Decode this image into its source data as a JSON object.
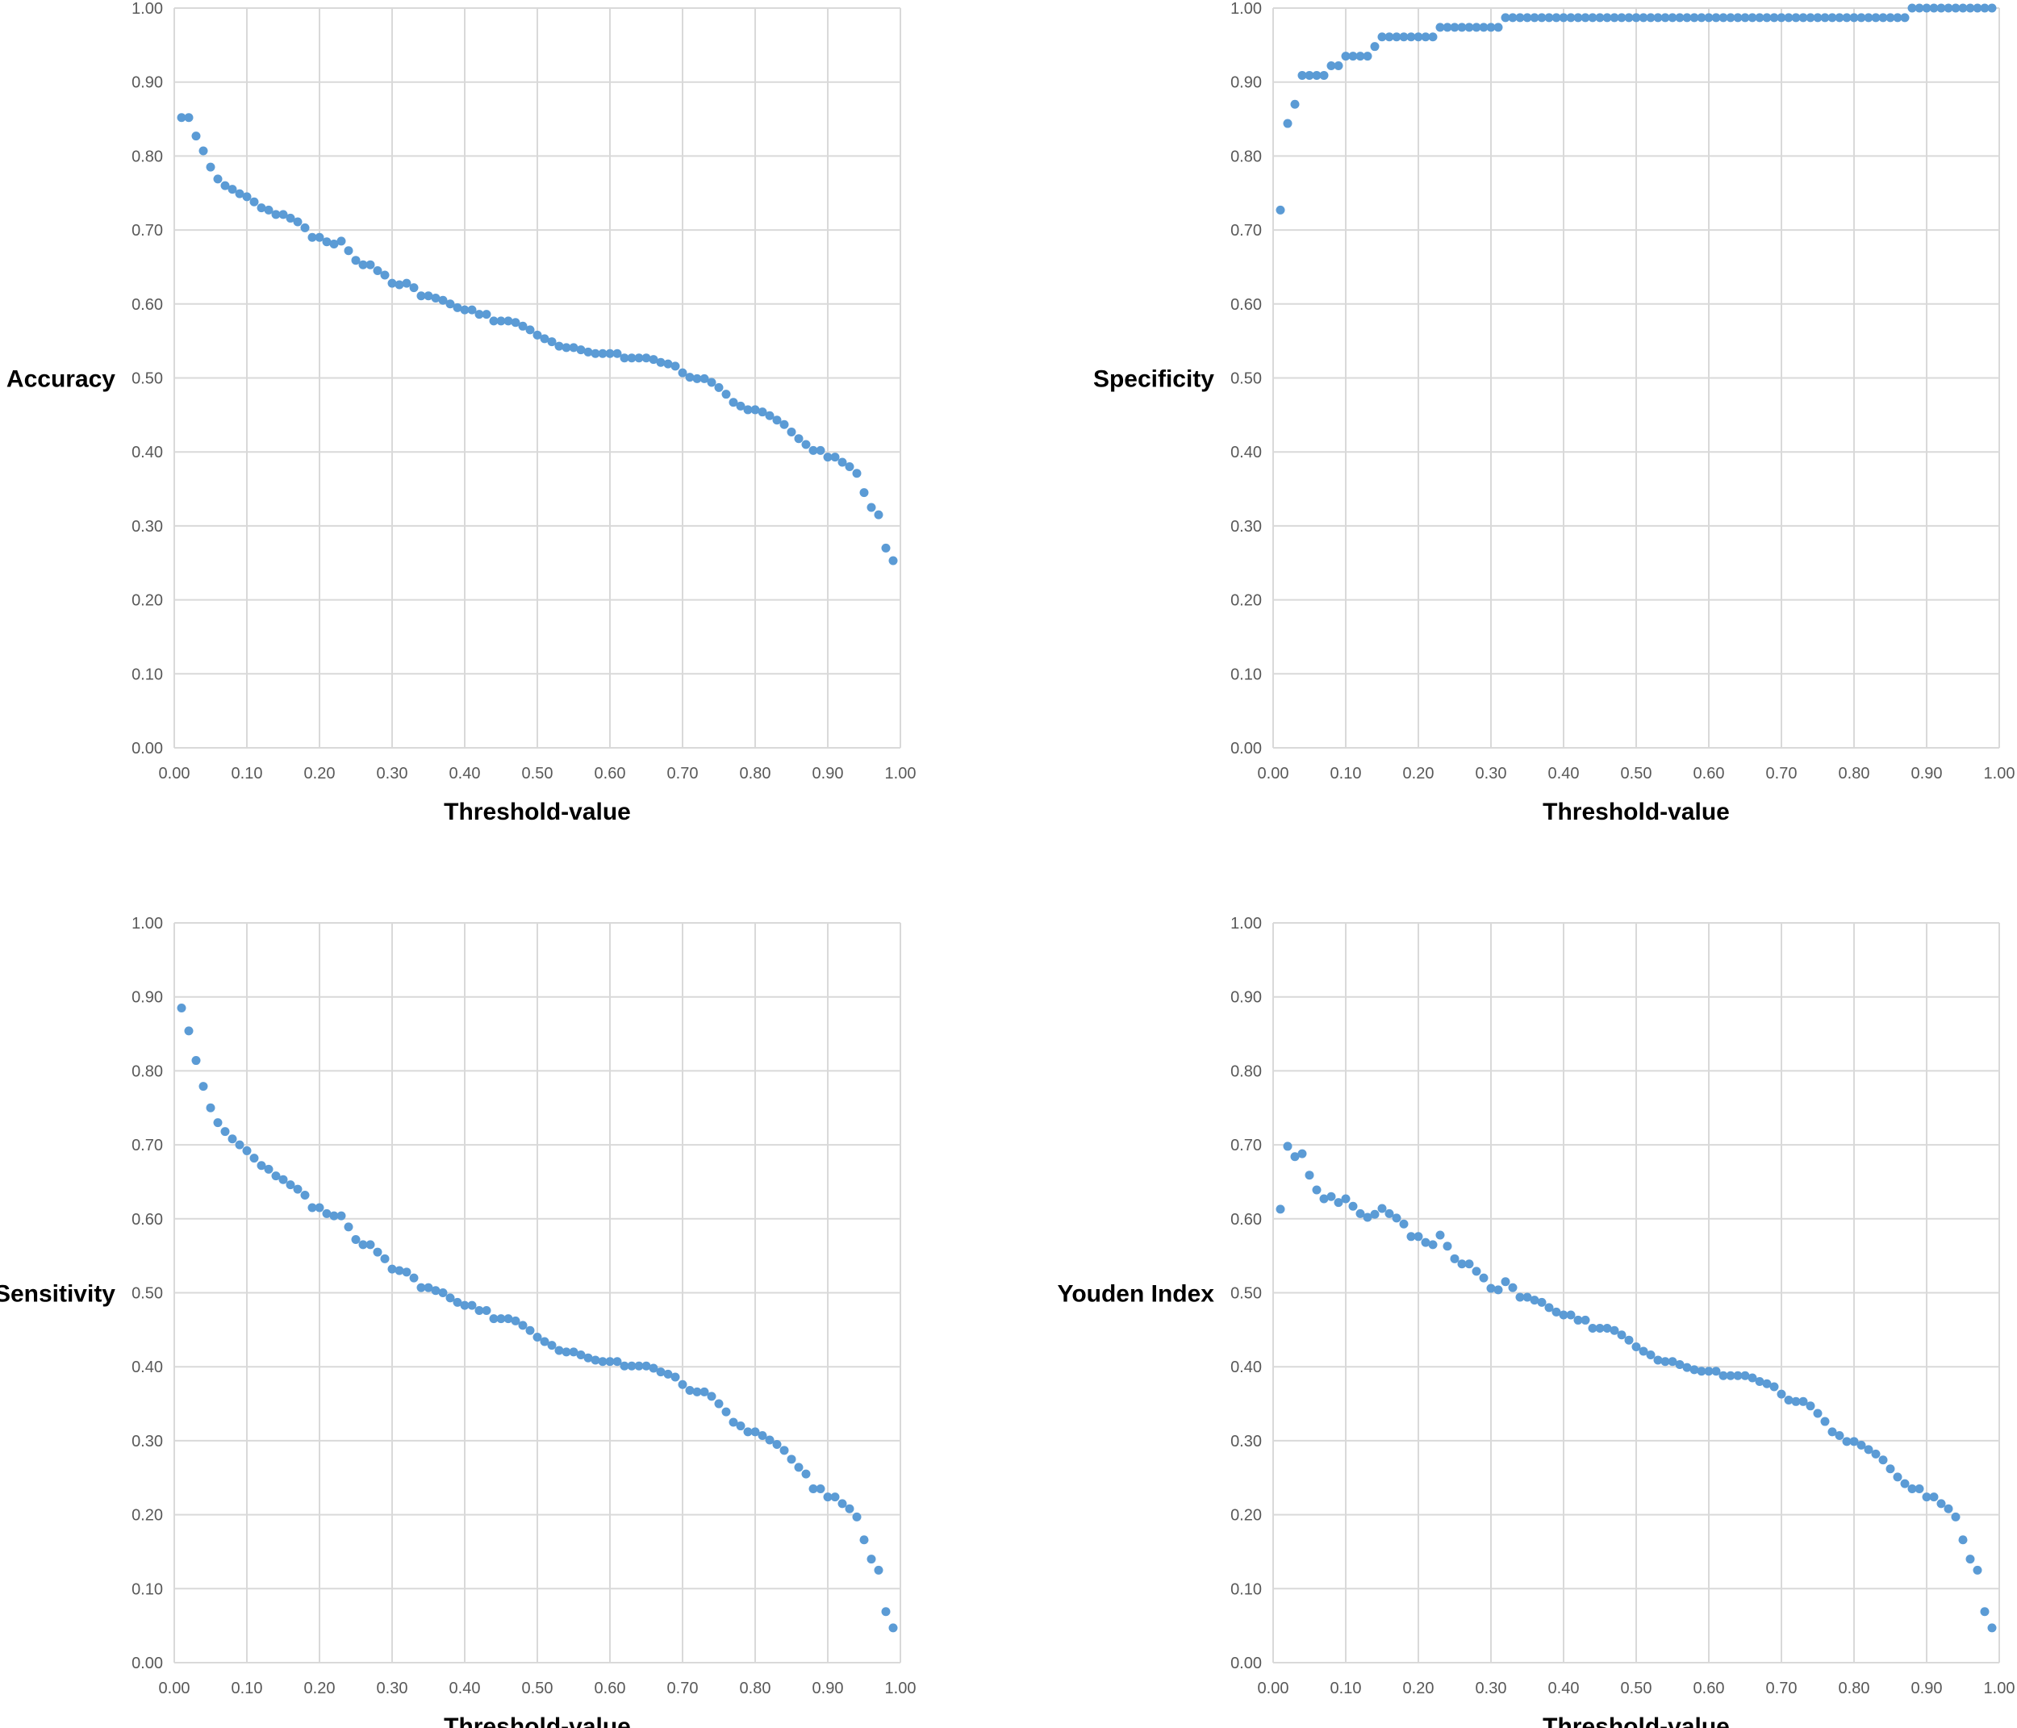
{
  "chart_data": [
    {
      "type": "scatter",
      "xlabel": "Threshold-value",
      "ylabel": "Accuracy",
      "xlim": [
        0,
        1
      ],
      "ylim": [
        0,
        1
      ],
      "grid": true,
      "legend": "none",
      "x_ticks": [
        "0.00",
        "0.10",
        "0.20",
        "0.30",
        "0.40",
        "0.50",
        "0.60",
        "0.70",
        "0.80",
        "0.90",
        "1.00"
      ],
      "y_ticks": [
        "0.00",
        "0.10",
        "0.20",
        "0.30",
        "0.40",
        "0.50",
        "0.60",
        "0.70",
        "0.80",
        "0.90",
        "1.00"
      ],
      "color": "#5b9bd5",
      "x": [
        0.01,
        0.02,
        0.03,
        0.04,
        0.05,
        0.06,
        0.07,
        0.08,
        0.09,
        0.1,
        0.11,
        0.12,
        0.13,
        0.14,
        0.15,
        0.16,
        0.17,
        0.18,
        0.19,
        0.2,
        0.21,
        0.22,
        0.23,
        0.24,
        0.25,
        0.26,
        0.27,
        0.28,
        0.29,
        0.3,
        0.31,
        0.32,
        0.33,
        0.34,
        0.35,
        0.36,
        0.37,
        0.38,
        0.39,
        0.4,
        0.41,
        0.42,
        0.43,
        0.44,
        0.45,
        0.46,
        0.47,
        0.48,
        0.49,
        0.5,
        0.51,
        0.52,
        0.53,
        0.54,
        0.55,
        0.56,
        0.57,
        0.58,
        0.59,
        0.6,
        0.61,
        0.62,
        0.63,
        0.64,
        0.65,
        0.66,
        0.67,
        0.68,
        0.69,
        0.7,
        0.71,
        0.72,
        0.73,
        0.74,
        0.75,
        0.76,
        0.77,
        0.78,
        0.79,
        0.8,
        0.81,
        0.82,
        0.83,
        0.84,
        0.85,
        0.86,
        0.87,
        0.88,
        0.89,
        0.9,
        0.91,
        0.92,
        0.93,
        0.94,
        0.95,
        0.96,
        0.97,
        0.98,
        0.99
      ],
      "y": [
        0.852,
        0.852,
        0.827,
        0.807,
        0.785,
        0.769,
        0.76,
        0.755,
        0.749,
        0.745,
        0.738,
        0.73,
        0.727,
        0.721,
        0.721,
        0.716,
        0.711,
        0.703,
        0.69,
        0.69,
        0.684,
        0.681,
        0.685,
        0.672,
        0.659,
        0.653,
        0.653,
        0.645,
        0.639,
        0.628,
        0.626,
        0.628,
        0.622,
        0.611,
        0.611,
        0.608,
        0.605,
        0.6,
        0.595,
        0.592,
        0.592,
        0.586,
        0.586,
        0.577,
        0.577,
        0.577,
        0.575,
        0.57,
        0.565,
        0.558,
        0.553,
        0.549,
        0.543,
        0.541,
        0.541,
        0.538,
        0.535,
        0.533,
        0.533,
        0.533,
        0.533,
        0.527,
        0.527,
        0.527,
        0.527,
        0.525,
        0.521,
        0.519,
        0.516,
        0.507,
        0.501,
        0.499,
        0.499,
        0.494,
        0.487,
        0.478,
        0.467,
        0.462,
        0.457,
        0.457,
        0.454,
        0.449,
        0.443,
        0.437,
        0.427,
        0.418,
        0.41,
        0.402,
        0.402,
        0.393,
        0.393,
        0.386,
        0.38,
        0.371,
        0.345,
        0.325,
        0.315,
        0.27,
        0.253
      ]
    },
    {
      "type": "scatter",
      "xlabel": "Threshold-value",
      "ylabel": "Specificity",
      "xlim": [
        0,
        1
      ],
      "ylim": [
        0,
        1
      ],
      "grid": true,
      "legend": "none",
      "x_ticks": [
        "0.00",
        "0.10",
        "0.20",
        "0.30",
        "0.40",
        "0.50",
        "0.60",
        "0.70",
        "0.80",
        "0.90",
        "1.00"
      ],
      "y_ticks": [
        "0.00",
        "0.10",
        "0.20",
        "0.30",
        "0.40",
        "0.50",
        "0.60",
        "0.70",
        "0.80",
        "0.90",
        "1.00"
      ],
      "color": "#5b9bd5",
      "x": [
        0.01,
        0.02,
        0.03,
        0.04,
        0.05,
        0.06,
        0.07,
        0.08,
        0.09,
        0.1,
        0.11,
        0.12,
        0.13,
        0.14,
        0.15,
        0.16,
        0.17,
        0.18,
        0.19,
        0.2,
        0.21,
        0.22,
        0.23,
        0.24,
        0.25,
        0.26,
        0.27,
        0.28,
        0.29,
        0.3,
        0.31,
        0.32,
        0.33,
        0.34,
        0.35,
        0.36,
        0.37,
        0.38,
        0.39,
        0.4,
        0.41,
        0.42,
        0.43,
        0.44,
        0.45,
        0.46,
        0.47,
        0.48,
        0.49,
        0.5,
        0.51,
        0.52,
        0.53,
        0.54,
        0.55,
        0.56,
        0.57,
        0.58,
        0.59,
        0.6,
        0.61,
        0.62,
        0.63,
        0.64,
        0.65,
        0.66,
        0.67,
        0.68,
        0.69,
        0.7,
        0.71,
        0.72,
        0.73,
        0.74,
        0.75,
        0.76,
        0.77,
        0.78,
        0.79,
        0.8,
        0.81,
        0.82,
        0.83,
        0.84,
        0.85,
        0.86,
        0.87,
        0.88,
        0.89,
        0.9,
        0.91,
        0.92,
        0.93,
        0.94,
        0.95,
        0.96,
        0.97,
        0.98,
        0.99
      ],
      "y": [
        0.727,
        0.844,
        0.87,
        0.909,
        0.909,
        0.909,
        0.909,
        0.922,
        0.922,
        0.935,
        0.935,
        0.935,
        0.935,
        0.948,
        0.961,
        0.961,
        0.961,
        0.961,
        0.961,
        0.961,
        0.961,
        0.961,
        0.974,
        0.974,
        0.974,
        0.974,
        0.974,
        0.974,
        0.974,
        0.974,
        0.974,
        0.987,
        0.987,
        0.987,
        0.987,
        0.987,
        0.987,
        0.987,
        0.987,
        0.987,
        0.987,
        0.987,
        0.987,
        0.987,
        0.987,
        0.987,
        0.987,
        0.987,
        0.987,
        0.987,
        0.987,
        0.987,
        0.987,
        0.987,
        0.987,
        0.987,
        0.987,
        0.987,
        0.987,
        0.987,
        0.987,
        0.987,
        0.987,
        0.987,
        0.987,
        0.987,
        0.987,
        0.987,
        0.987,
        0.987,
        0.987,
        0.987,
        0.987,
        0.987,
        0.987,
        0.987,
        0.987,
        0.987,
        0.987,
        0.987,
        0.987,
        0.987,
        0.987,
        0.987,
        0.987,
        0.987,
        0.987,
        1.0,
        1.0,
        1.0,
        1.0,
        1.0,
        1.0,
        1.0,
        1.0,
        1.0,
        1.0,
        1.0,
        1.0
      ]
    },
    {
      "type": "scatter",
      "xlabel": "Threshold-value",
      "ylabel": "Sensitivity",
      "xlim": [
        0,
        1
      ],
      "ylim": [
        0,
        1
      ],
      "grid": true,
      "legend": "none",
      "x_ticks": [
        "0.00",
        "0.10",
        "0.20",
        "0.30",
        "0.40",
        "0.50",
        "0.60",
        "0.70",
        "0.80",
        "0.90",
        "1.00"
      ],
      "y_ticks": [
        "0.00",
        "0.10",
        "0.20",
        "0.30",
        "0.40",
        "0.50",
        "0.60",
        "0.70",
        "0.80",
        "0.90",
        "1.00"
      ],
      "color": "#5b9bd5",
      "x": [
        0.01,
        0.02,
        0.03,
        0.04,
        0.05,
        0.06,
        0.07,
        0.08,
        0.09,
        0.1,
        0.11,
        0.12,
        0.13,
        0.14,
        0.15,
        0.16,
        0.17,
        0.18,
        0.19,
        0.2,
        0.21,
        0.22,
        0.23,
        0.24,
        0.25,
        0.26,
        0.27,
        0.28,
        0.29,
        0.3,
        0.31,
        0.32,
        0.33,
        0.34,
        0.35,
        0.36,
        0.37,
        0.38,
        0.39,
        0.4,
        0.41,
        0.42,
        0.43,
        0.44,
        0.45,
        0.46,
        0.47,
        0.48,
        0.49,
        0.5,
        0.51,
        0.52,
        0.53,
        0.54,
        0.55,
        0.56,
        0.57,
        0.58,
        0.59,
        0.6,
        0.61,
        0.62,
        0.63,
        0.64,
        0.65,
        0.66,
        0.67,
        0.68,
        0.69,
        0.7,
        0.71,
        0.72,
        0.73,
        0.74,
        0.75,
        0.76,
        0.77,
        0.78,
        0.79,
        0.8,
        0.81,
        0.82,
        0.83,
        0.84,
        0.85,
        0.86,
        0.87,
        0.88,
        0.89,
        0.9,
        0.91,
        0.92,
        0.93,
        0.94,
        0.95,
        0.96,
        0.97,
        0.98,
        0.99
      ],
      "y": [
        0.885,
        0.854,
        0.814,
        0.779,
        0.75,
        0.73,
        0.718,
        0.708,
        0.7,
        0.692,
        0.682,
        0.672,
        0.667,
        0.658,
        0.653,
        0.646,
        0.64,
        0.632,
        0.615,
        0.615,
        0.607,
        0.604,
        0.604,
        0.589,
        0.572,
        0.565,
        0.565,
        0.555,
        0.546,
        0.532,
        0.53,
        0.528,
        0.52,
        0.507,
        0.507,
        0.503,
        0.5,
        0.493,
        0.487,
        0.483,
        0.483,
        0.476,
        0.476,
        0.465,
        0.465,
        0.465,
        0.462,
        0.456,
        0.449,
        0.44,
        0.434,
        0.429,
        0.422,
        0.42,
        0.42,
        0.416,
        0.412,
        0.409,
        0.407,
        0.407,
        0.407,
        0.401,
        0.401,
        0.401,
        0.401,
        0.398,
        0.393,
        0.39,
        0.386,
        0.376,
        0.368,
        0.366,
        0.366,
        0.36,
        0.35,
        0.339,
        0.325,
        0.32,
        0.312,
        0.312,
        0.307,
        0.301,
        0.295,
        0.287,
        0.275,
        0.264,
        0.255,
        0.235,
        0.235,
        0.224,
        0.224,
        0.215,
        0.208,
        0.197,
        0.166,
        0.14,
        0.125,
        0.069,
        0.047
      ]
    },
    {
      "type": "scatter",
      "xlabel": "Threshold-value",
      "ylabel": "Youden Index",
      "xlim": [
        0,
        1
      ],
      "ylim": [
        0,
        1
      ],
      "grid": true,
      "legend": "none",
      "x_ticks": [
        "0.00",
        "0.10",
        "0.20",
        "0.30",
        "0.40",
        "0.50",
        "0.60",
        "0.70",
        "0.80",
        "0.90",
        "1.00"
      ],
      "y_ticks": [
        "0.00",
        "0.10",
        "0.20",
        "0.30",
        "0.40",
        "0.50",
        "0.60",
        "0.70",
        "0.80",
        "0.90",
        "1.00"
      ],
      "color": "#5b9bd5",
      "x": [
        0.01,
        0.02,
        0.03,
        0.04,
        0.05,
        0.06,
        0.07,
        0.08,
        0.09,
        0.1,
        0.11,
        0.12,
        0.13,
        0.14,
        0.15,
        0.16,
        0.17,
        0.18,
        0.19,
        0.2,
        0.21,
        0.22,
        0.23,
        0.24,
        0.25,
        0.26,
        0.27,
        0.28,
        0.29,
        0.3,
        0.31,
        0.32,
        0.33,
        0.34,
        0.35,
        0.36,
        0.37,
        0.38,
        0.39,
        0.4,
        0.41,
        0.42,
        0.43,
        0.44,
        0.45,
        0.46,
        0.47,
        0.48,
        0.49,
        0.5,
        0.51,
        0.52,
        0.53,
        0.54,
        0.55,
        0.56,
        0.57,
        0.58,
        0.59,
        0.6,
        0.61,
        0.62,
        0.63,
        0.64,
        0.65,
        0.66,
        0.67,
        0.68,
        0.69,
        0.7,
        0.71,
        0.72,
        0.73,
        0.74,
        0.75,
        0.76,
        0.77,
        0.78,
        0.79,
        0.8,
        0.81,
        0.82,
        0.83,
        0.84,
        0.85,
        0.86,
        0.87,
        0.88,
        0.89,
        0.9,
        0.91,
        0.92,
        0.93,
        0.94,
        0.95,
        0.96,
        0.97,
        0.98,
        0.99
      ],
      "y": [
        0.613,
        0.698,
        0.684,
        0.688,
        0.659,
        0.639,
        0.627,
        0.63,
        0.622,
        0.627,
        0.617,
        0.607,
        0.602,
        0.606,
        0.614,
        0.607,
        0.601,
        0.593,
        0.576,
        0.576,
        0.568,
        0.565,
        0.578,
        0.563,
        0.546,
        0.539,
        0.539,
        0.529,
        0.52,
        0.506,
        0.504,
        0.515,
        0.507,
        0.494,
        0.494,
        0.49,
        0.487,
        0.48,
        0.474,
        0.47,
        0.47,
        0.463,
        0.463,
        0.452,
        0.452,
        0.452,
        0.449,
        0.443,
        0.436,
        0.427,
        0.421,
        0.416,
        0.409,
        0.407,
        0.407,
        0.403,
        0.399,
        0.396,
        0.394,
        0.394,
        0.394,
        0.388,
        0.388,
        0.388,
        0.388,
        0.385,
        0.38,
        0.377,
        0.373,
        0.363,
        0.355,
        0.353,
        0.353,
        0.347,
        0.337,
        0.326,
        0.312,
        0.307,
        0.299,
        0.299,
        0.294,
        0.288,
        0.282,
        0.274,
        0.262,
        0.251,
        0.242,
        0.235,
        0.235,
        0.224,
        0.224,
        0.215,
        0.208,
        0.197,
        0.166,
        0.14,
        0.125,
        0.069,
        0.047
      ]
    }
  ]
}
